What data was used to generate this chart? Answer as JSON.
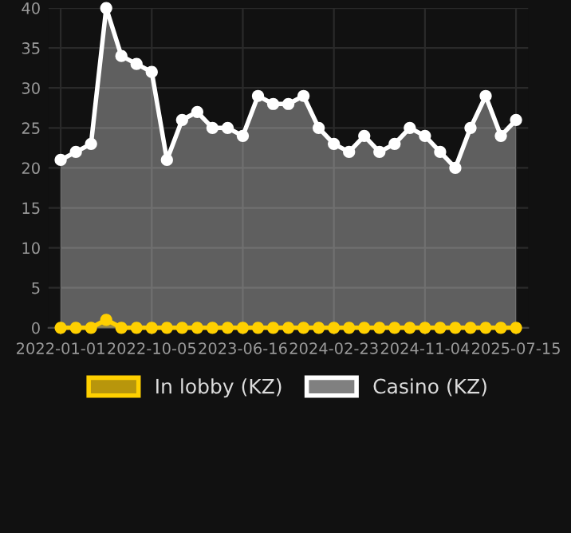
{
  "chart_data": {
    "type": "area",
    "categories": [
      "2022-01-01",
      null,
      null,
      null,
      null,
      null,
      "2022-10-05",
      null,
      null,
      null,
      null,
      null,
      "2023-06-16",
      null,
      null,
      null,
      null,
      null,
      "2024-02-23",
      null,
      null,
      null,
      null,
      null,
      "2024-11-04",
      null,
      null,
      null,
      null,
      null,
      "2025-07-15"
    ],
    "series": [
      {
        "name": "In lobby (KZ)",
        "color": "#ffd000",
        "values": [
          0,
          0,
          0,
          1,
          0,
          0,
          0,
          0,
          0,
          0,
          0,
          0,
          0,
          0,
          0,
          0,
          0,
          0,
          0,
          0,
          0,
          0,
          0,
          0,
          0,
          0,
          0,
          0,
          0,
          0,
          0
        ]
      },
      {
        "name": "Casino (KZ)",
        "color": "#ffffff",
        "values": [
          21,
          22,
          23,
          40,
          34,
          33,
          32,
          21,
          26,
          27,
          25,
          25,
          24,
          29,
          28,
          28,
          29,
          25,
          23,
          22,
          24,
          22,
          23,
          25,
          24,
          22,
          20,
          25,
          29,
          24,
          26
        ]
      }
    ],
    "ylim": [
      0,
      40
    ],
    "yticks": [
      0,
      5,
      10,
      15,
      20,
      25,
      30,
      35,
      40
    ],
    "grid": true,
    "legend": "bottom",
    "marker": "circle",
    "line_style": "solid"
  }
}
